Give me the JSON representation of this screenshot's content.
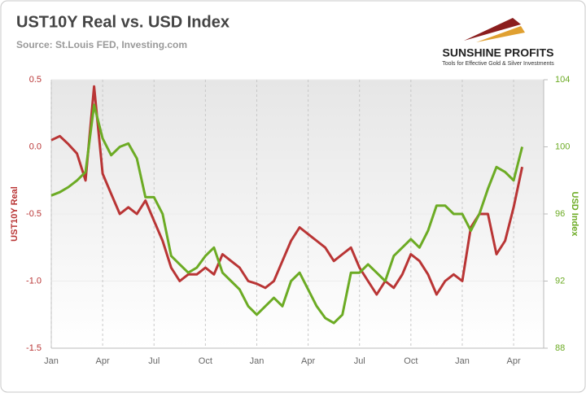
{
  "chart_data": {
    "type": "line",
    "title": "UST10Y Real vs. USD Index",
    "subtitle": "Source: St.Louis FED,  Investing.com",
    "categories": [
      "Jan",
      null,
      null,
      null,
      null,
      null,
      "Apr",
      null,
      null,
      null,
      null,
      null,
      "Jul",
      null,
      null,
      null,
      null,
      null,
      "Oct",
      null,
      null,
      null,
      null,
      null,
      "Jan",
      null,
      null,
      null,
      null,
      null,
      "Apr",
      null,
      null,
      null,
      null,
      null,
      "Jul",
      null,
      null,
      null,
      null,
      null,
      "Oct",
      null,
      null,
      null,
      null,
      null,
      "Jan",
      null,
      null,
      null,
      null,
      null,
      "Apr",
      null
    ],
    "series": [
      {
        "name": "UST10Y Real",
        "color": "#b93535",
        "axis": "y",
        "values": [
          0.05,
          0.08,
          0.02,
          -0.05,
          -0.25,
          0.45,
          -0.2,
          -0.35,
          -0.5,
          -0.45,
          -0.5,
          -0.4,
          -0.55,
          -0.7,
          -0.9,
          -1.0,
          -0.95,
          -0.95,
          -0.9,
          -0.95,
          -0.8,
          -0.85,
          -0.9,
          -1.0,
          -1.02,
          -1.05,
          -1.0,
          -0.85,
          -0.7,
          -0.6,
          -0.65,
          -0.7,
          -0.75,
          -0.85,
          -0.8,
          -0.75,
          -0.9,
          -1.0,
          -1.1,
          -1.0,
          -1.05,
          -0.95,
          -0.8,
          -0.85,
          -0.95,
          -1.1,
          -1.0,
          -0.95,
          -1.0,
          -0.6,
          -0.5,
          -0.5,
          -0.8,
          -0.7,
          -0.45,
          -0.15
        ]
      },
      {
        "name": "USD Index",
        "color": "#6cab24",
        "axis": "y2",
        "values": [
          97.1,
          97.3,
          97.6,
          98.0,
          98.5,
          102.5,
          100.5,
          99.5,
          100.0,
          100.2,
          99.3,
          97.0,
          97.0,
          96.0,
          93.5,
          93.0,
          92.5,
          92.8,
          93.5,
          94.0,
          92.5,
          92.0,
          91.5,
          90.5,
          90.0,
          90.5,
          91.0,
          90.5,
          92.0,
          92.5,
          91.5,
          90.5,
          89.8,
          89.5,
          90.0,
          92.5,
          92.5,
          93.0,
          92.5,
          92.0,
          93.5,
          94.0,
          94.5,
          94.0,
          95.0,
          96.5,
          96.5,
          96.0,
          96.0,
          95.0,
          96.0,
          97.5,
          98.8,
          98.5,
          98.0,
          100.0
        ]
      }
    ],
    "ylim": [
      -1.5,
      0.5
    ],
    "yticks": [
      0.5,
      {
        "value": 0,
        "label": "0.0"
      },
      -0.5,
      {
        "value": -1,
        "label": "-1.0"
      },
      -1.5
    ],
    "y2lim": [
      88,
      104
    ],
    "y2ticks": [
      104,
      100,
      96,
      92,
      88
    ],
    "grid": true
  },
  "logo": {
    "name": "SUNSHINE PROFITS",
    "tagline": "Tools for Effective Gold & Silver Investments"
  }
}
